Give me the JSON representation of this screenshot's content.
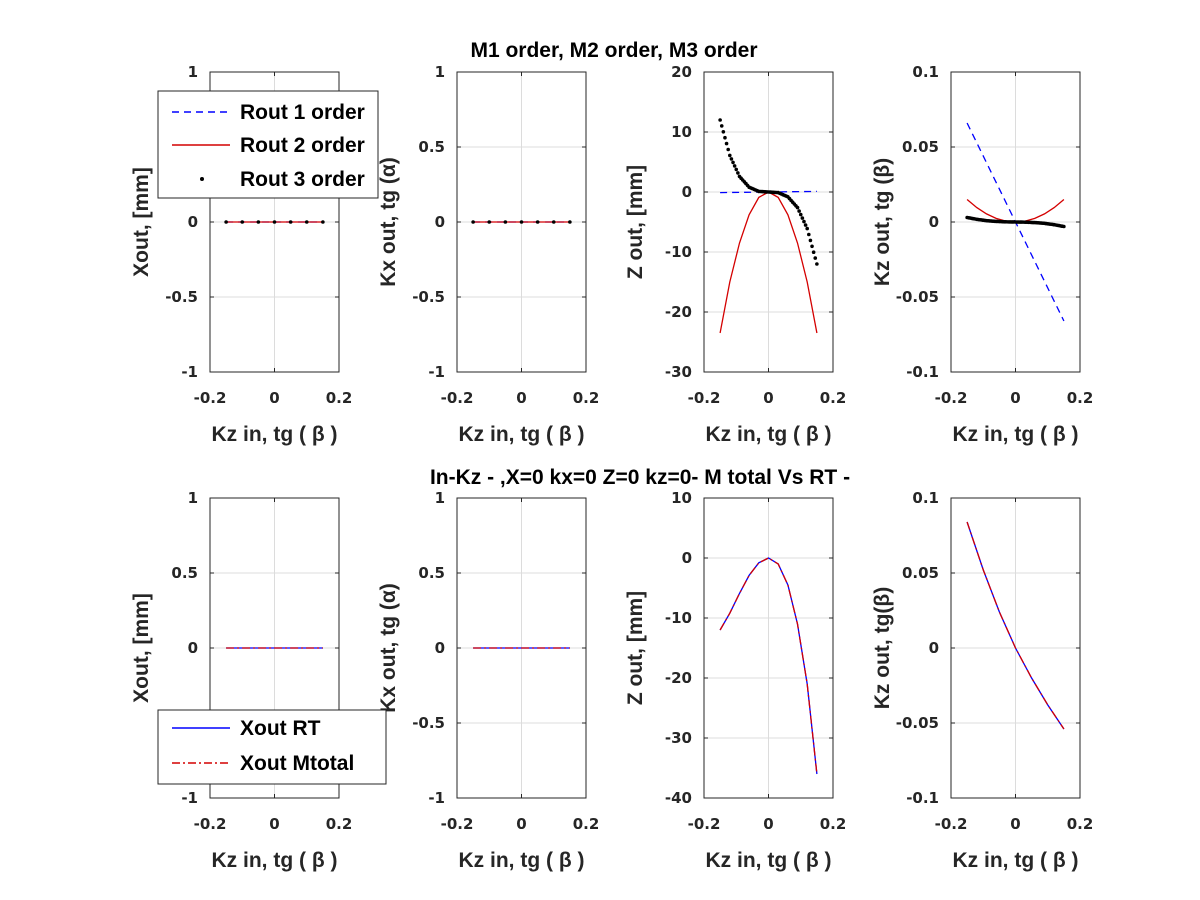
{
  "row_titles": [
    "M1 order, M2 order, M3 order",
    "In-Kz - ,X=0  kx=0  Z=0   kz=0- M total Vs RT -"
  ],
  "legends": {
    "top": [
      "Rout 1 order",
      "Rout 2 order",
      "Rout 3 order"
    ],
    "bottom": [
      "Xout RT",
      "Xout  Mtotal"
    ]
  },
  "colors": {
    "blue": "#0000ff",
    "red": "#d40000",
    "black": "#000000",
    "grid": "#dcdcdc",
    "axis": "#262626"
  },
  "chart_data": [
    {
      "id": "r1c1",
      "type": "line",
      "xlabel": "Kz in,  tg ( β )",
      "ylabel": "Xout, [mm]",
      "xlim": [
        -0.2,
        0.2
      ],
      "ylim": [
        -1,
        1
      ],
      "xticks": [
        "-0.2",
        "0",
        "0.2"
      ],
      "yticks": [
        "-1",
        "-0.5",
        "0",
        "0.5",
        "1"
      ],
      "series": [
        {
          "name": "Rout 1 order",
          "style": "dashed",
          "color": "blue",
          "x": [
            -0.15,
            0.15
          ],
          "y": [
            0,
            0
          ]
        },
        {
          "name": "Rout 2 order",
          "style": "solid",
          "color": "red",
          "x": [
            -0.15,
            0.15
          ],
          "y": [
            0,
            0
          ]
        },
        {
          "name": "Rout 3 order",
          "style": "dots",
          "color": "black",
          "x": [
            -0.15,
            0.15
          ],
          "y": [
            0,
            0
          ]
        }
      ]
    },
    {
      "id": "r1c2",
      "type": "line",
      "xlabel": "Kz in,  tg ( β )",
      "ylabel": "Kx out, tg (α)",
      "xlim": [
        -0.2,
        0.2
      ],
      "ylim": [
        -1,
        1
      ],
      "xticks": [
        "-0.2",
        "0",
        "0.2"
      ],
      "yticks": [
        "-1",
        "-0.5",
        "0",
        "0.5",
        "1"
      ],
      "series": [
        {
          "style": "dashed",
          "color": "blue",
          "x": [
            -0.15,
            0.15
          ],
          "y": [
            0,
            0
          ]
        },
        {
          "style": "solid",
          "color": "red",
          "x": [
            -0.15,
            0.15
          ],
          "y": [
            0,
            0
          ]
        },
        {
          "style": "dots",
          "color": "black",
          "x": [
            -0.15,
            0.15
          ],
          "y": [
            0,
            0
          ]
        }
      ]
    },
    {
      "id": "r1c3",
      "type": "line",
      "xlabel": "Kz in,  tg ( β )",
      "ylabel": "Z out, [mm]",
      "xlim": [
        -0.2,
        0.2
      ],
      "ylim": [
        -30,
        20
      ],
      "xticks": [
        "-0.2",
        "0",
        "0.2"
      ],
      "yticks": [
        "-30",
        "-20",
        "-10",
        "0",
        "10",
        "20"
      ],
      "series": [
        {
          "style": "dashed",
          "color": "blue",
          "x": [
            -0.15,
            0.15
          ],
          "y": [
            -0.1,
            0.1
          ]
        },
        {
          "style": "solid",
          "color": "red",
          "x": [
            -0.15,
            -0.12,
            -0.09,
            -0.06,
            -0.03,
            0,
            0.03,
            0.06,
            0.09,
            0.12,
            0.15
          ],
          "y": [
            -23.5,
            -15.0,
            -8.5,
            -3.8,
            -0.9,
            0,
            -0.9,
            -3.8,
            -8.5,
            -15.0,
            -23.5
          ]
        },
        {
          "style": "dots",
          "color": "black",
          "x": [
            -0.15,
            -0.12,
            -0.09,
            -0.06,
            -0.03,
            0,
            0.03,
            0.06,
            0.09,
            0.12,
            0.15
          ],
          "y": [
            12.0,
            6.1,
            2.6,
            0.8,
            0.1,
            0,
            -0.1,
            -0.8,
            -2.6,
            -6.1,
            -12.0
          ]
        }
      ]
    },
    {
      "id": "r1c4",
      "type": "line",
      "xlabel": "Kz in,  tg ( β )",
      "ylabel": "Kz  out, tg (β)",
      "xlim": [
        -0.2,
        0.2
      ],
      "ylim": [
        -0.1,
        0.1
      ],
      "xticks": [
        "-0.2",
        "0",
        "0.2"
      ],
      "yticks": [
        "-0.1",
        "-0.05",
        "0",
        "0.05",
        "0.1"
      ],
      "series": [
        {
          "style": "dashed",
          "color": "blue",
          "x": [
            -0.15,
            0.15
          ],
          "y": [
            0.066,
            -0.066
          ]
        },
        {
          "style": "solid",
          "color": "red",
          "x": [
            -0.15,
            -0.12,
            -0.09,
            -0.06,
            -0.03,
            0,
            0.03,
            0.06,
            0.09,
            0.12,
            0.15
          ],
          "y": [
            0.015,
            0.0096,
            0.0054,
            0.0024,
            0.0006,
            0,
            0.0006,
            0.0024,
            0.0054,
            0.0096,
            0.015
          ]
        },
        {
          "style": "dots",
          "color": "black",
          "x": [
            -0.15,
            -0.12,
            -0.09,
            -0.06,
            -0.03,
            0,
            0.03,
            0.06,
            0.09,
            0.12,
            0.15
          ],
          "y": [
            0.003,
            0.0018,
            0.0009,
            0.0004,
            0.0001,
            0,
            -0.0001,
            -0.0004,
            -0.0009,
            -0.0018,
            -0.003
          ]
        }
      ]
    },
    {
      "id": "r2c1",
      "type": "line",
      "xlabel": "Kz in,  tg ( β )",
      "ylabel": "Xout, [mm]",
      "xlim": [
        -0.2,
        0.2
      ],
      "ylim": [
        -1,
        1
      ],
      "xticks": [
        "-0.2",
        "0",
        "0.2"
      ],
      "yticks": [
        "-1",
        "-0.5",
        "0",
        "0.5",
        "1"
      ],
      "series": [
        {
          "name": "Xout RT",
          "style": "solid",
          "color": "blue",
          "x": [
            -0.15,
            0.15
          ],
          "y": [
            0,
            0
          ]
        },
        {
          "name": "Xout  Mtotal",
          "style": "dashdot",
          "color": "red",
          "x": [
            -0.15,
            0.15
          ],
          "y": [
            0,
            0
          ]
        }
      ]
    },
    {
      "id": "r2c2",
      "type": "line",
      "xlabel": "Kz in,  tg ( β )",
      "ylabel": "Kx out,  tg (α)",
      "xlim": [
        -0.2,
        0.2
      ],
      "ylim": [
        -1,
        1
      ],
      "xticks": [
        "-0.2",
        "0",
        "0.2"
      ],
      "yticks": [
        "-1",
        "-0.5",
        "0",
        "0.5",
        "1"
      ],
      "series": [
        {
          "style": "solid",
          "color": "blue",
          "x": [
            -0.15,
            0.15
          ],
          "y": [
            0,
            0
          ]
        },
        {
          "style": "dashdot",
          "color": "red",
          "x": [
            -0.15,
            0.15
          ],
          "y": [
            0,
            0
          ]
        }
      ]
    },
    {
      "id": "r2c3",
      "type": "line",
      "xlabel": "Kz in,  tg ( β )",
      "ylabel": "Z out, [mm]",
      "xlim": [
        -0.2,
        0.2
      ],
      "ylim": [
        -40,
        10
      ],
      "xticks": [
        "-0.2",
        "0",
        "0.2"
      ],
      "yticks": [
        "-40",
        "-30",
        "-20",
        "-10",
        "0",
        "10"
      ],
      "series": [
        {
          "style": "solid",
          "color": "blue",
          "x": [
            -0.15,
            -0.12,
            -0.09,
            -0.06,
            -0.03,
            0,
            0.03,
            0.06,
            0.09,
            0.12,
            0.15
          ],
          "y": [
            -12.0,
            -9.2,
            -5.9,
            -2.9,
            -0.8,
            0,
            -1.0,
            -4.5,
            -11.0,
            -21.0,
            -36.0
          ]
        },
        {
          "style": "dashdot",
          "color": "red",
          "x": [
            -0.15,
            -0.12,
            -0.09,
            -0.06,
            -0.03,
            0,
            0.03,
            0.06,
            0.09,
            0.12,
            0.15
          ],
          "y": [
            -12.0,
            -9.2,
            -5.9,
            -2.9,
            -0.8,
            0,
            -1.0,
            -4.5,
            -11.0,
            -21.0,
            -36.0
          ]
        }
      ]
    },
    {
      "id": "r2c4",
      "type": "line",
      "xlabel": "Kz in,  tg ( β )",
      "ylabel": "Kz out, tg(β)",
      "xlim": [
        -0.2,
        0.2
      ],
      "ylim": [
        -0.1,
        0.1
      ],
      "xticks": [
        "-0.2",
        "0",
        "0.2"
      ],
      "yticks": [
        "-0.1",
        "-0.05",
        "0",
        "0.05",
        "0.1"
      ],
      "series": [
        {
          "style": "solid",
          "color": "blue",
          "x": [
            -0.15,
            -0.1,
            -0.05,
            0,
            0.05,
            0.1,
            0.15
          ],
          "y": [
            0.084,
            0.052,
            0.024,
            0,
            -0.02,
            -0.038,
            -0.054
          ]
        },
        {
          "style": "dashdot",
          "color": "red",
          "x": [
            -0.15,
            -0.1,
            -0.05,
            0,
            0.05,
            0.1,
            0.15
          ],
          "y": [
            0.084,
            0.052,
            0.024,
            0,
            -0.02,
            -0.038,
            -0.054
          ]
        }
      ]
    }
  ]
}
